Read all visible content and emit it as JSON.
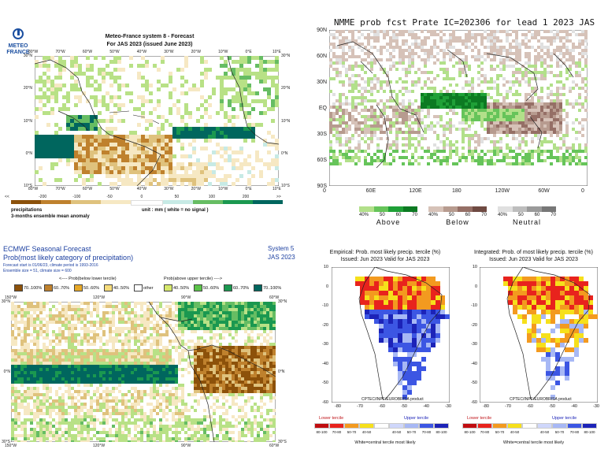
{
  "colors": {
    "ocean": "#ffffff",
    "land": "#ffffff",
    "coast": "#222222",
    "teal": "#00665e",
    "green_dark": "#1a9850",
    "green": "#66bd63",
    "green_light": "#b8e186",
    "brown_dark": "#8c510a",
    "brown": "#bf812d",
    "tan": "#dfc27d",
    "cream": "#f6e8c3",
    "nmme_green1": "#b2e08a",
    "nmme_green2": "#66c45a",
    "nmme_green3": "#1fa037",
    "nmme_green4": "#0c7a22",
    "nmme_brown1": "#d6c2b8",
    "nmme_brown2": "#b79b8f",
    "nmme_brown3": "#956f66",
    "nmme_brown4": "#6f4a42",
    "nmme_gray1": "#e0e0e0",
    "nmme_gray2": "#bdbdbd",
    "nmme_gray3": "#9a9a9a",
    "nmme_gray4": "#777777",
    "red": "#e8231d",
    "orange": "#f39a1f",
    "yellow": "#f6e01b",
    "lblue": "#a7b8f5",
    "blue": "#3c56e3",
    "dblue": "#1c23b8"
  },
  "meteo_france": {
    "logo_line1": "METEO",
    "logo_line2": "FRANCE",
    "title_line1": "Meteo-France system 8  -  Forecast",
    "title_line2": "For JAS 2023      (issued June 2023)",
    "lon_ticks": [
      "80°W",
      "70°W",
      "60°W",
      "50°W",
      "40°W",
      "30°W",
      "20°W",
      "10°W",
      "0°E",
      "10°E"
    ],
    "lat_ticks": [
      "30°N",
      "20°N",
      "10°N",
      "0°N",
      "10°S"
    ],
    "colorbar_labels": [
      "<<",
      "-200",
      "-100",
      "-50",
      "0",
      "50",
      "100",
      "200",
      ">>"
    ],
    "legend_left_line1": "precipitations",
    "legend_left_line2": "3-months ensemble mean anomaly",
    "legend_unit": "unit : mm  ( white = no signal )"
  },
  "nmme": {
    "title": "NMME prob fcst Prate IC=202306 for lead 1 2023 JAS",
    "lat_ticks": [
      "90N",
      "60N",
      "30N",
      "EQ",
      "30S",
      "60S",
      "90S"
    ],
    "lon_ticks": [
      "0",
      "60E",
      "120E",
      "180",
      "120W",
      "60W",
      "0"
    ],
    "legend_groups": [
      {
        "name": "Above",
        "ticks": [
          "40%",
          "50",
          "60",
          "70"
        ]
      },
      {
        "name": "Below",
        "ticks": [
          "40%",
          "50",
          "60",
          "70"
        ]
      },
      {
        "name": "Neutral",
        "ticks": [
          "40%",
          "50",
          "60",
          "70"
        ]
      }
    ]
  },
  "ecmwf": {
    "title": "ECMWF Seasonal Forecast",
    "subtitle": "Prob(most likely category of precipitation)",
    "info_line1": "Forecast start is 01/06/23, climate period is 1993-2016",
    "info_line2": "Ensemble size = 51, climate size = 600",
    "system": "System 5",
    "season": "JAS 2023",
    "below_header": "<---- Prob(below lower tercile)",
    "above_header": "Prob(above upper tercile) ---->",
    "legend_items": [
      "70..100%",
      "60..70%",
      "50..60%",
      "40..50%",
      "other",
      "40..50%",
      "50..60%",
      "60..70%",
      "70..100%"
    ],
    "lon_ticks": [
      "150°W",
      "120°W",
      "90°W",
      "60°W"
    ],
    "lat_ticks": [
      "30°N",
      "0°N",
      "30°S"
    ]
  },
  "cptec_left": {
    "title_line1": "Empirical: Prob. most likely precip. tercile (%)",
    "title_line2": "Issued: Jun 2023       Valid for JAS 2023",
    "credit": "CPTEC/INPE/EUROBRISA product",
    "lat_ticks": [
      "10",
      "0",
      "-10",
      "-20",
      "-30",
      "-40",
      "-50",
      "-60"
    ],
    "lon_ticks": [
      "-80",
      "-70",
      "-60",
      "-50",
      "-40",
      "-30"
    ],
    "lower_label": "Lower tercile",
    "upper_label": "Upper tercile",
    "cb_ticks": [
      "80-100",
      "70-80",
      "50-70",
      "40-50",
      "40-50",
      "50-70",
      "70-80",
      "80-100"
    ],
    "footer": "White=central tercile most likely"
  },
  "cptec_right": {
    "title_line1": "Integrated: Prob. of most likely precip. tercile (%)",
    "title_line2": "Issued: Jun 2023       Valid for JAS 2023",
    "credit": "CPTEC/INPE/EUROBRISA product",
    "lat_ticks": [
      "10",
      "0",
      "-10",
      "-20",
      "-30",
      "-40",
      "-50",
      "-60"
    ],
    "lon_ticks": [
      "-80",
      "-70",
      "-60",
      "-50",
      "-40",
      "-30"
    ],
    "lower_label": "Lower tercile",
    "upper_label": "Upper tercile",
    "cb_ticks": [
      "80-100",
      "70-80",
      "50-70",
      "40-50",
      "40-50",
      "50-70",
      "70-80",
      "80-100"
    ],
    "footer": "White=central tercile most likely"
  }
}
